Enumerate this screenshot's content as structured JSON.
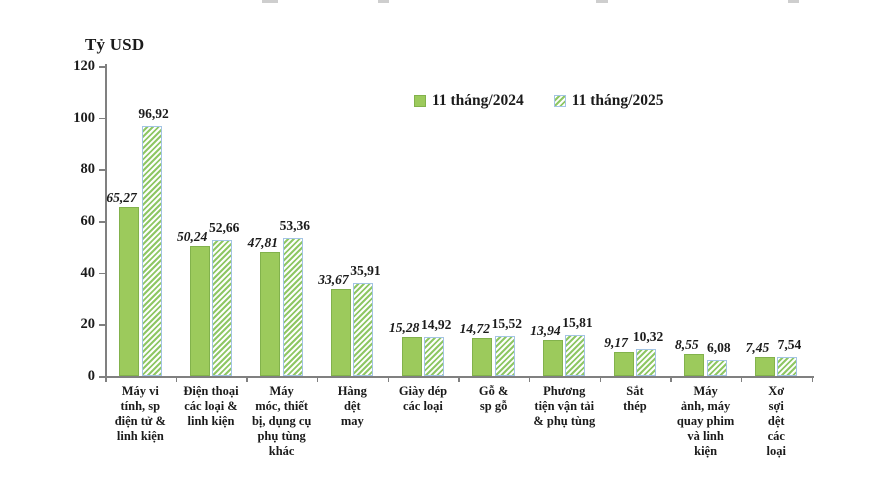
{
  "chart_data": {
    "type": "bar",
    "title": "",
    "ylabel": "Tỷ USD",
    "xlabel": "",
    "categories": [
      "Máy vi\ntính, sp\nđiện tử &\nlinh kiện",
      "Điện thoại\ncác loại &\nlinh kiện",
      "Máy\nmóc, thiết\nbị, dụng cụ\nphụ tùng\nkhác",
      "Hàng\ndệt\nmay",
      "Giày dép\ncác loại",
      "Gỗ &\nsp gỗ",
      "Phương\ntiện vận tải\n& phụ tùng",
      "Sắt\nthép",
      "Máy\nảnh, máy\nquay phim\nvà linh\nkiện",
      "Xơ\nsợi\ndệt\ncác\nloại"
    ],
    "series": [
      {
        "name": "11 tháng/2024",
        "style": "solid",
        "values": [
          65.27,
          50.24,
          47.81,
          33.67,
          15.28,
          14.72,
          13.94,
          9.17,
          8.55,
          7.45
        ],
        "display_labels": [
          "65,27",
          "50,24",
          "47,81",
          "33,67",
          "15,28",
          "14,72",
          "13,94",
          "9,17",
          "8,55",
          "7,45"
        ]
      },
      {
        "name": "11 tháng/2025",
        "style": "hatched",
        "values": [
          96.92,
          52.66,
          53.36,
          35.91,
          14.92,
          15.52,
          15.81,
          10.32,
          6.08,
          7.54
        ],
        "display_labels": [
          "96,92",
          "52,66",
          "53,36",
          "35,91",
          "14,92",
          "15,52",
          "15,81",
          "10,32",
          "6,08",
          "7,54"
        ]
      }
    ],
    "ylim": [
      0,
      120
    ],
    "yticks": [
      0,
      20,
      40,
      60,
      80,
      100,
      120
    ],
    "grid": false,
    "legend_position": "top-center"
  },
  "legend": {
    "items": [
      {
        "label": "11 tháng/2024",
        "swatch": "solid-green"
      },
      {
        "label": "11 tháng/2025",
        "swatch": "green-hatch-blue-border"
      }
    ]
  },
  "colors": {
    "bar_2024_fill": "#9cca5c",
    "bar_2024_border": "#82b24c",
    "bar_2025_stripe": "#8ec764",
    "bar_2025_bg": "#fdfefd",
    "bar_2025_border": "#a3c4e4",
    "axis": "#808080",
    "text": "#1b1b1b"
  }
}
